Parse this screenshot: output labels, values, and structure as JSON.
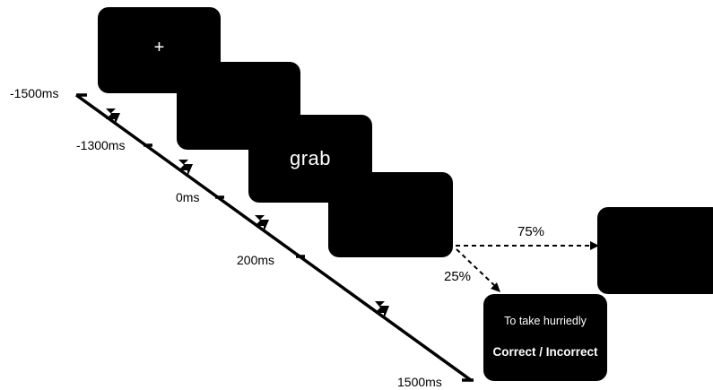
{
  "screens": {
    "fixation_symbol": "+",
    "word": "grab",
    "definition": "To take hurriedly",
    "feedback": "Correct / Incorrect"
  },
  "timeline": {
    "t_fixation": "-1500ms",
    "t_blank": "-1300ms",
    "t_word": "0ms",
    "t_post_word": "200ms",
    "t_end": "1500ms"
  },
  "branches": {
    "blank_probability": "75%",
    "definition_probability": "25%"
  },
  "colors": {
    "screen_fill": "#000000",
    "text_on_screen": "#ffffff",
    "line": "#000000"
  },
  "icons": {
    "timeline_break": "lightning-break-icon",
    "arrow": "dashed-arrow-icon"
  }
}
